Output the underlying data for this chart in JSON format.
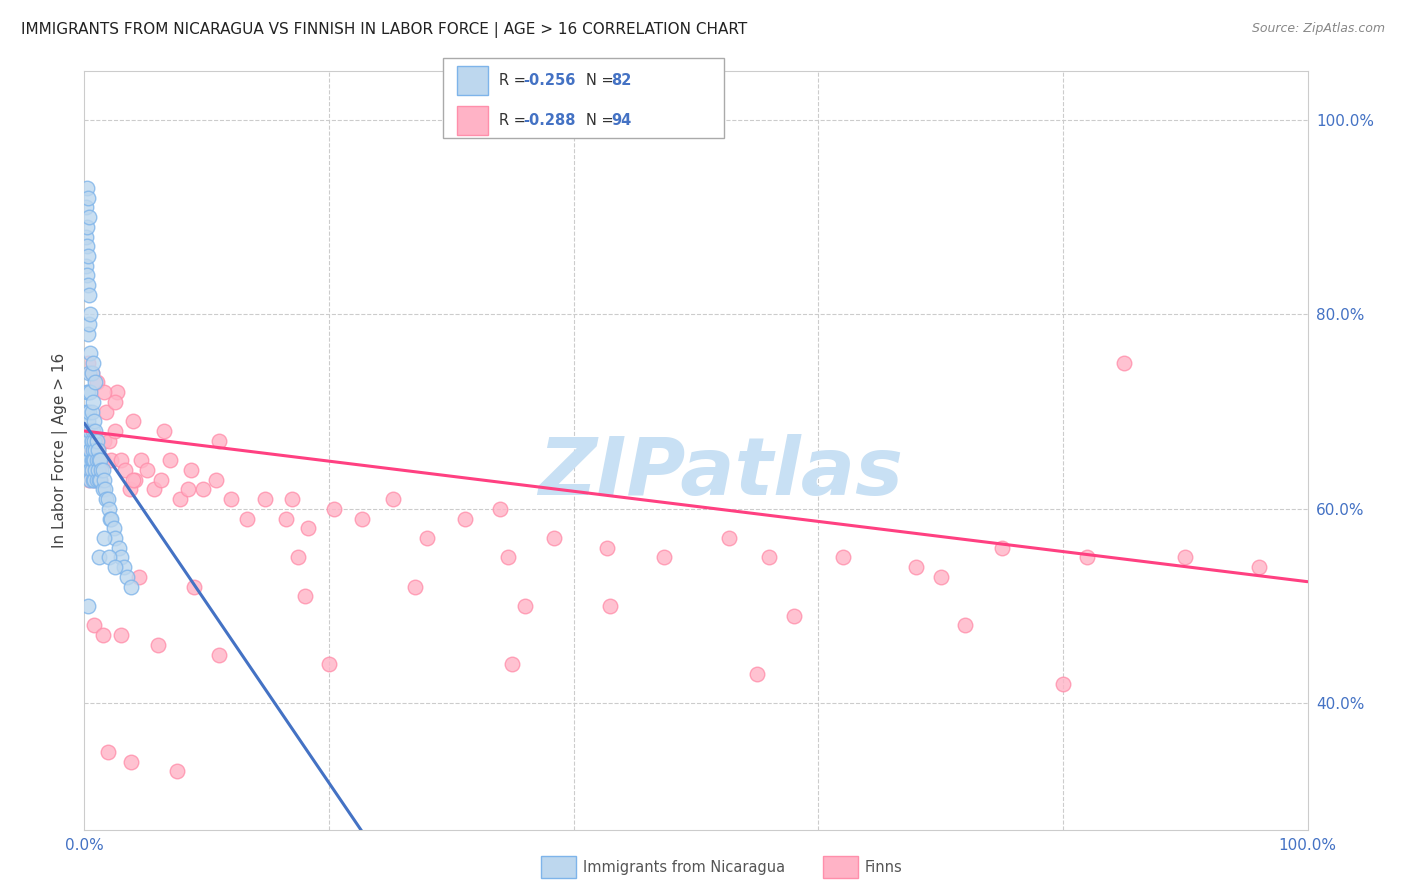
{
  "title": "IMMIGRANTS FROM NICARAGUA VS FINNISH IN LABOR FORCE | AGE > 16 CORRELATION CHART",
  "source": "Source: ZipAtlas.com",
  "ylabel": "In Labor Force | Age > 16",
  "xlim": [
    0.0,
    1.0
  ],
  "ylim": [
    0.27,
    1.05
  ],
  "xtick_positions": [
    0.0,
    1.0
  ],
  "xtick_labels": [
    "0.0%",
    "100.0%"
  ],
  "ytick_positions": [
    0.4,
    0.6,
    0.8,
    1.0
  ],
  "ytick_labels": [
    "40.0%",
    "60.0%",
    "80.0%",
    "100.0%"
  ],
  "blue_color": "#7EB4EA",
  "blue_fill": "#BDD7EE",
  "pink_color": "#FF8FAB",
  "pink_fill": "#FFB3C6",
  "trend_blue_solid_color": "#4472C4",
  "trend_blue_dash_color": "#7EB4EA",
  "trend_pink_color": "#FF4081",
  "watermark_text": "ZIPatlas",
  "watermark_color": "#C8E0F4",
  "grid_color": "#CCCCCC",
  "blue_trend_intercept": 0.688,
  "blue_trend_slope": -1.85,
  "pink_trend_intercept": 0.68,
  "pink_trend_slope": -0.155,
  "nicaragua_x": [
    0.001,
    0.001,
    0.001,
    0.001,
    0.002,
    0.002,
    0.002,
    0.002,
    0.002,
    0.002,
    0.003,
    0.003,
    0.003,
    0.003,
    0.003,
    0.003,
    0.003,
    0.004,
    0.004,
    0.004,
    0.004,
    0.004,
    0.004,
    0.005,
    0.005,
    0.005,
    0.005,
    0.005,
    0.005,
    0.006,
    0.006,
    0.006,
    0.006,
    0.006,
    0.007,
    0.007,
    0.007,
    0.007,
    0.007,
    0.008,
    0.008,
    0.008,
    0.008,
    0.009,
    0.009,
    0.009,
    0.01,
    0.01,
    0.01,
    0.011,
    0.011,
    0.012,
    0.012,
    0.013,
    0.013,
    0.014,
    0.015,
    0.015,
    0.016,
    0.017,
    0.018,
    0.019,
    0.02,
    0.021,
    0.022,
    0.024,
    0.025,
    0.028,
    0.03,
    0.032,
    0.035,
    0.038,
    0.002,
    0.003,
    0.004,
    0.005,
    0.007,
    0.009,
    0.012,
    0.016,
    0.02,
    0.025,
    0.003
  ],
  "nicaragua_y": [
    0.91,
    0.88,
    0.85,
    0.7,
    0.89,
    0.87,
    0.84,
    0.72,
    0.7,
    0.67,
    0.86,
    0.83,
    0.78,
    0.72,
    0.69,
    0.67,
    0.65,
    0.82,
    0.79,
    0.74,
    0.7,
    0.67,
    0.65,
    0.76,
    0.72,
    0.68,
    0.66,
    0.64,
    0.63,
    0.74,
    0.7,
    0.67,
    0.65,
    0.64,
    0.71,
    0.68,
    0.66,
    0.65,
    0.63,
    0.69,
    0.67,
    0.65,
    0.63,
    0.68,
    0.66,
    0.64,
    0.67,
    0.65,
    0.63,
    0.66,
    0.64,
    0.65,
    0.63,
    0.65,
    0.63,
    0.64,
    0.64,
    0.62,
    0.63,
    0.62,
    0.61,
    0.61,
    0.6,
    0.59,
    0.59,
    0.58,
    0.57,
    0.56,
    0.55,
    0.54,
    0.53,
    0.52,
    0.93,
    0.92,
    0.9,
    0.8,
    0.75,
    0.73,
    0.55,
    0.57,
    0.55,
    0.54,
    0.5
  ],
  "finns_x": [
    0.001,
    0.002,
    0.002,
    0.003,
    0.003,
    0.004,
    0.004,
    0.005,
    0.005,
    0.006,
    0.007,
    0.007,
    0.008,
    0.009,
    0.01,
    0.011,
    0.012,
    0.013,
    0.015,
    0.016,
    0.018,
    0.02,
    0.022,
    0.025,
    0.027,
    0.03,
    0.033,
    0.037,
    0.041,
    0.046,
    0.051,
    0.057,
    0.063,
    0.07,
    0.078,
    0.087,
    0.097,
    0.108,
    0.12,
    0.133,
    0.148,
    0.165,
    0.183,
    0.204,
    0.227,
    0.252,
    0.28,
    0.311,
    0.346,
    0.384,
    0.427,
    0.474,
    0.527,
    0.56,
    0.62,
    0.68,
    0.75,
    0.82,
    0.9,
    0.96,
    0.003,
    0.006,
    0.01,
    0.016,
    0.025,
    0.04,
    0.065,
    0.11,
    0.175,
    0.27,
    0.43,
    0.58,
    0.72,
    0.85,
    0.008,
    0.015,
    0.03,
    0.06,
    0.11,
    0.2,
    0.35,
    0.55,
    0.8,
    0.045,
    0.09,
    0.18,
    0.36,
    0.7,
    0.04,
    0.085,
    0.17,
    0.34,
    0.019,
    0.038,
    0.076
  ],
  "finns_y": [
    0.66,
    0.65,
    0.68,
    0.67,
    0.64,
    0.66,
    0.63,
    0.65,
    0.67,
    0.64,
    0.66,
    0.65,
    0.63,
    0.67,
    0.65,
    0.66,
    0.64,
    0.63,
    0.65,
    0.67,
    0.7,
    0.67,
    0.65,
    0.68,
    0.72,
    0.65,
    0.64,
    0.62,
    0.63,
    0.65,
    0.64,
    0.62,
    0.63,
    0.65,
    0.61,
    0.64,
    0.62,
    0.63,
    0.61,
    0.59,
    0.61,
    0.59,
    0.58,
    0.6,
    0.59,
    0.61,
    0.57,
    0.59,
    0.55,
    0.57,
    0.56,
    0.55,
    0.57,
    0.55,
    0.55,
    0.54,
    0.56,
    0.55,
    0.55,
    0.54,
    0.75,
    0.74,
    0.73,
    0.72,
    0.71,
    0.69,
    0.68,
    0.67,
    0.55,
    0.52,
    0.5,
    0.49,
    0.48,
    0.75,
    0.48,
    0.47,
    0.47,
    0.46,
    0.45,
    0.44,
    0.44,
    0.43,
    0.42,
    0.53,
    0.52,
    0.51,
    0.5,
    0.53,
    0.63,
    0.62,
    0.61,
    0.6,
    0.35,
    0.34,
    0.33
  ]
}
